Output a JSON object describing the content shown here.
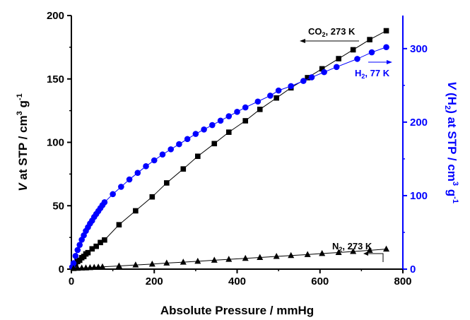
{
  "chart_data": {
    "type": "scatter",
    "xlabel": "Absolute Pressure / mmHg",
    "ylabel_left": {
      "italic": "V",
      "rest": " at STP / cm",
      "sup": "3",
      "tail": " g",
      "sup2": "-1"
    },
    "ylabel_right": {
      "italic": "V",
      "rest": " (H",
      "sub": "2",
      "rest2": ") at STP / cm",
      "sup": "3",
      "tail": " g",
      "sup2": "-1"
    },
    "xlim": [
      0,
      800
    ],
    "ylim_left": [
      0,
      200
    ],
    "ylim_right": [
      0,
      345
    ],
    "xticks": [
      "0",
      "200",
      "400",
      "600",
      "800"
    ],
    "yticks_left": [
      "0",
      "50",
      "100",
      "150",
      "200"
    ],
    "yticks_right": [
      "0",
      "100",
      "200",
      "300"
    ],
    "colors": {
      "black": "#000000",
      "blue": "#0000ff"
    },
    "series": [
      {
        "name": "CO2, 273 K",
        "axis": "left",
        "marker": "square",
        "color": "#000000",
        "x": [
          5,
          10,
          15,
          20,
          25,
          30,
          35,
          40,
          50,
          60,
          70,
          80,
          115,
          155,
          195,
          230,
          270,
          305,
          345,
          380,
          420,
          455,
          495,
          530,
          570,
          605,
          645,
          680,
          720,
          760
        ],
        "y": [
          2,
          4,
          6,
          7,
          9,
          10,
          12,
          13,
          16,
          18,
          21,
          23,
          35,
          46,
          57,
          68,
          79,
          89,
          99,
          108,
          117,
          126,
          135,
          143,
          151,
          158,
          166,
          173,
          181,
          188
        ]
      },
      {
        "name": "H2, 77 K",
        "axis": "right",
        "marker": "circle",
        "color": "#0000ff",
        "x": [
          2,
          5,
          10,
          15,
          20,
          25,
          30,
          35,
          40,
          45,
          50,
          55,
          60,
          65,
          70,
          75,
          80,
          100,
          120,
          140,
          160,
          180,
          200,
          220,
          240,
          260,
          280,
          300,
          320,
          340,
          360,
          380,
          400,
          420,
          450,
          480,
          500,
          530,
          560,
          580,
          610,
          640,
          690,
          725,
          760
        ],
        "y": [
          3,
          8,
          18,
          26,
          33,
          40,
          46,
          52,
          57,
          62,
          66,
          71,
          75,
          79,
          83,
          87,
          91,
          102,
          112,
          122,
          131,
          140,
          148,
          156,
          163,
          170,
          177,
          184,
          190,
          196,
          202,
          208,
          214,
          220,
          228,
          236,
          243,
          249,
          256,
          261,
          268,
          275,
          286,
          295,
          302
        ]
      },
      {
        "name": "N2, 273 K",
        "axis": "left",
        "marker": "triangle",
        "color": "#000000",
        "x": [
          5,
          15,
          25,
          35,
          45,
          55,
          65,
          75,
          115,
          155,
          195,
          230,
          270,
          305,
          345,
          380,
          420,
          455,
          495,
          530,
          570,
          605,
          645,
          680,
          720,
          760
        ],
        "y": [
          0.5,
          0.7,
          0.9,
          1.0,
          1.2,
          1.4,
          1.6,
          1.8,
          2.5,
          3.3,
          4.0,
          4.8,
          5.5,
          6.2,
          7.0,
          7.7,
          8.5,
          9.2,
          10.0,
          10.7,
          11.5,
          12.3,
          13.1,
          13.9,
          14.8,
          15.8
        ]
      }
    ],
    "annotations": [
      {
        "text": "CO",
        "sub": "2",
        "rest": ", 273 K",
        "color": "#000000",
        "arrow": "left"
      },
      {
        "text": "H",
        "sub": "2",
        "rest": ", 77 K",
        "color": "#0000ff",
        "arrow": "right"
      },
      {
        "text": "N",
        "sub": "2",
        "rest": ", 273 K",
        "color": "#000000",
        "arrow": "up-left"
      }
    ]
  }
}
